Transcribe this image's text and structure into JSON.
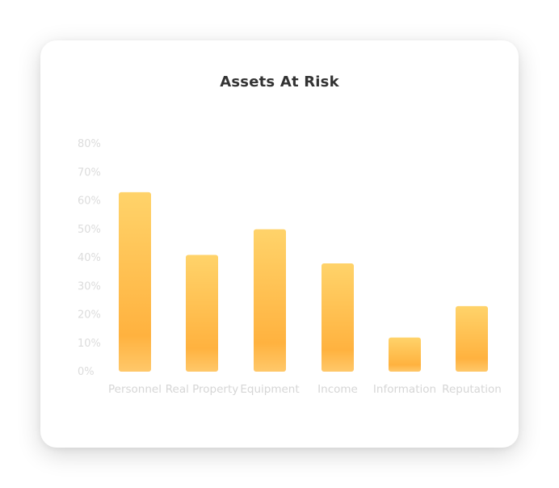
{
  "chart_data": {
    "type": "bar",
    "title": "Assets At Risk",
    "xlabel": "",
    "ylabel": "",
    "categories": [
      "Personnel",
      "Real Property",
      "Equipment",
      "Income",
      "Information",
      "Reputation"
    ],
    "values": [
      63,
      41,
      50,
      38,
      12,
      23
    ],
    "ylim": [
      0,
      80
    ],
    "yticks": [
      "0%",
      "10%",
      "20%",
      "30%",
      "40%",
      "50%",
      "60%",
      "70%",
      "80%"
    ],
    "grid": false,
    "legend": "none",
    "colors": {
      "bar_top": "#ffd36a",
      "bar_bottom": "#ffb23f",
      "tick_text": "#dcdcdc",
      "title_text": "#333333"
    }
  }
}
